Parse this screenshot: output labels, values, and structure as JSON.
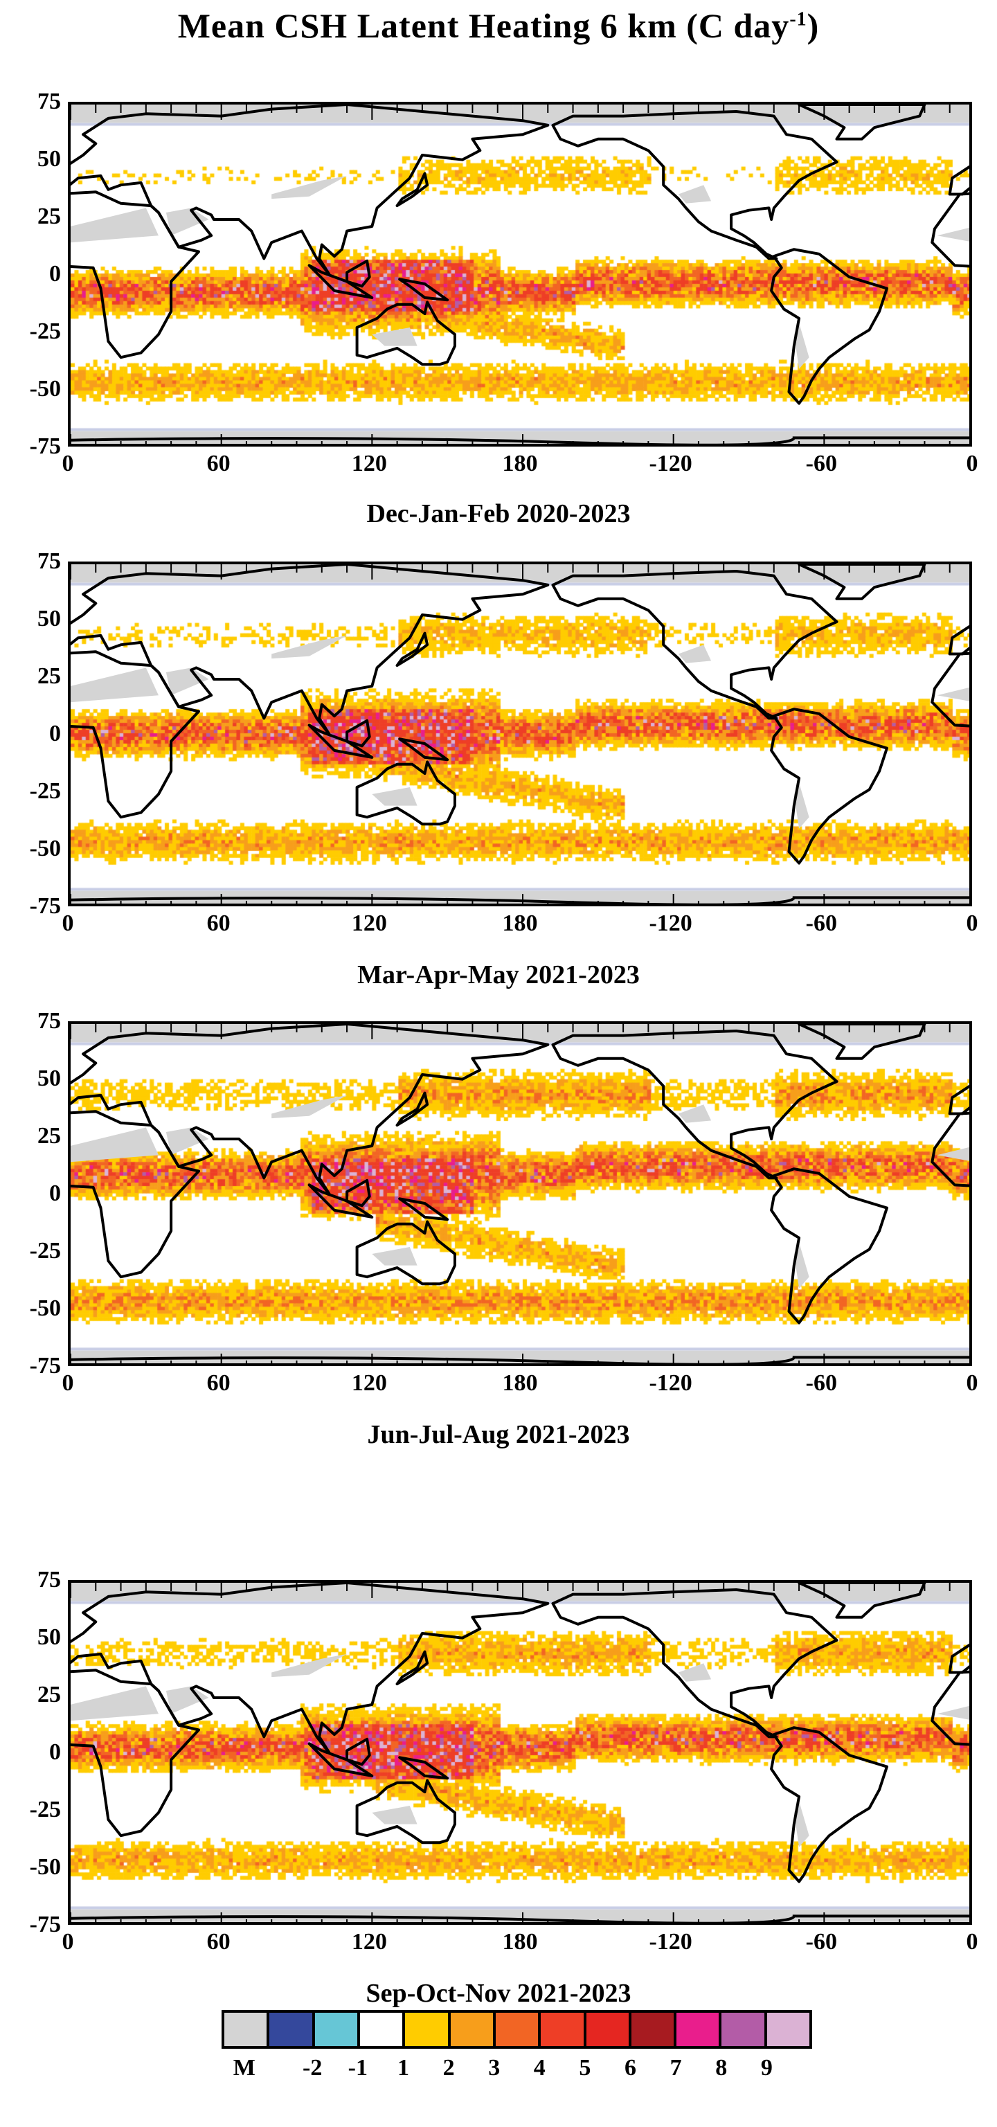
{
  "title": "Mean CSH Latent Heating  6 km  (C day",
  "title_superscript": "-1",
  "title_close": ")",
  "y_ticks": [
    "75",
    "50",
    "25",
    "0",
    "-25",
    "-50",
    "-75"
  ],
  "x_ticks": [
    "0",
    "60",
    "120",
    "180",
    "-120",
    "-60",
    "0"
  ],
  "panels": [
    {
      "subtitle": "Dec-Jan-Feb  2020-2023"
    },
    {
      "subtitle": "Mar-Apr-May  2021-2023"
    },
    {
      "subtitle": "Jun-Jul-Aug  2021-2023"
    },
    {
      "subtitle": "Sep-Oct-Nov  2021-2023"
    }
  ],
  "colorbar": {
    "labels": [
      "M",
      "-2",
      "-1",
      "1",
      "2",
      "3",
      "4",
      "5",
      "6",
      "7",
      "8",
      "9"
    ],
    "colors": [
      "#d4d4d4",
      "#34489c",
      "#66c6d6",
      "#ffffff",
      "#ffcc00",
      "#f79e1b",
      "#f26524",
      "#ee3e26",
      "#e52621",
      "#a71b20",
      "#e91e8c",
      "#b35ca7",
      "#dbb2d4"
    ]
  }
}
